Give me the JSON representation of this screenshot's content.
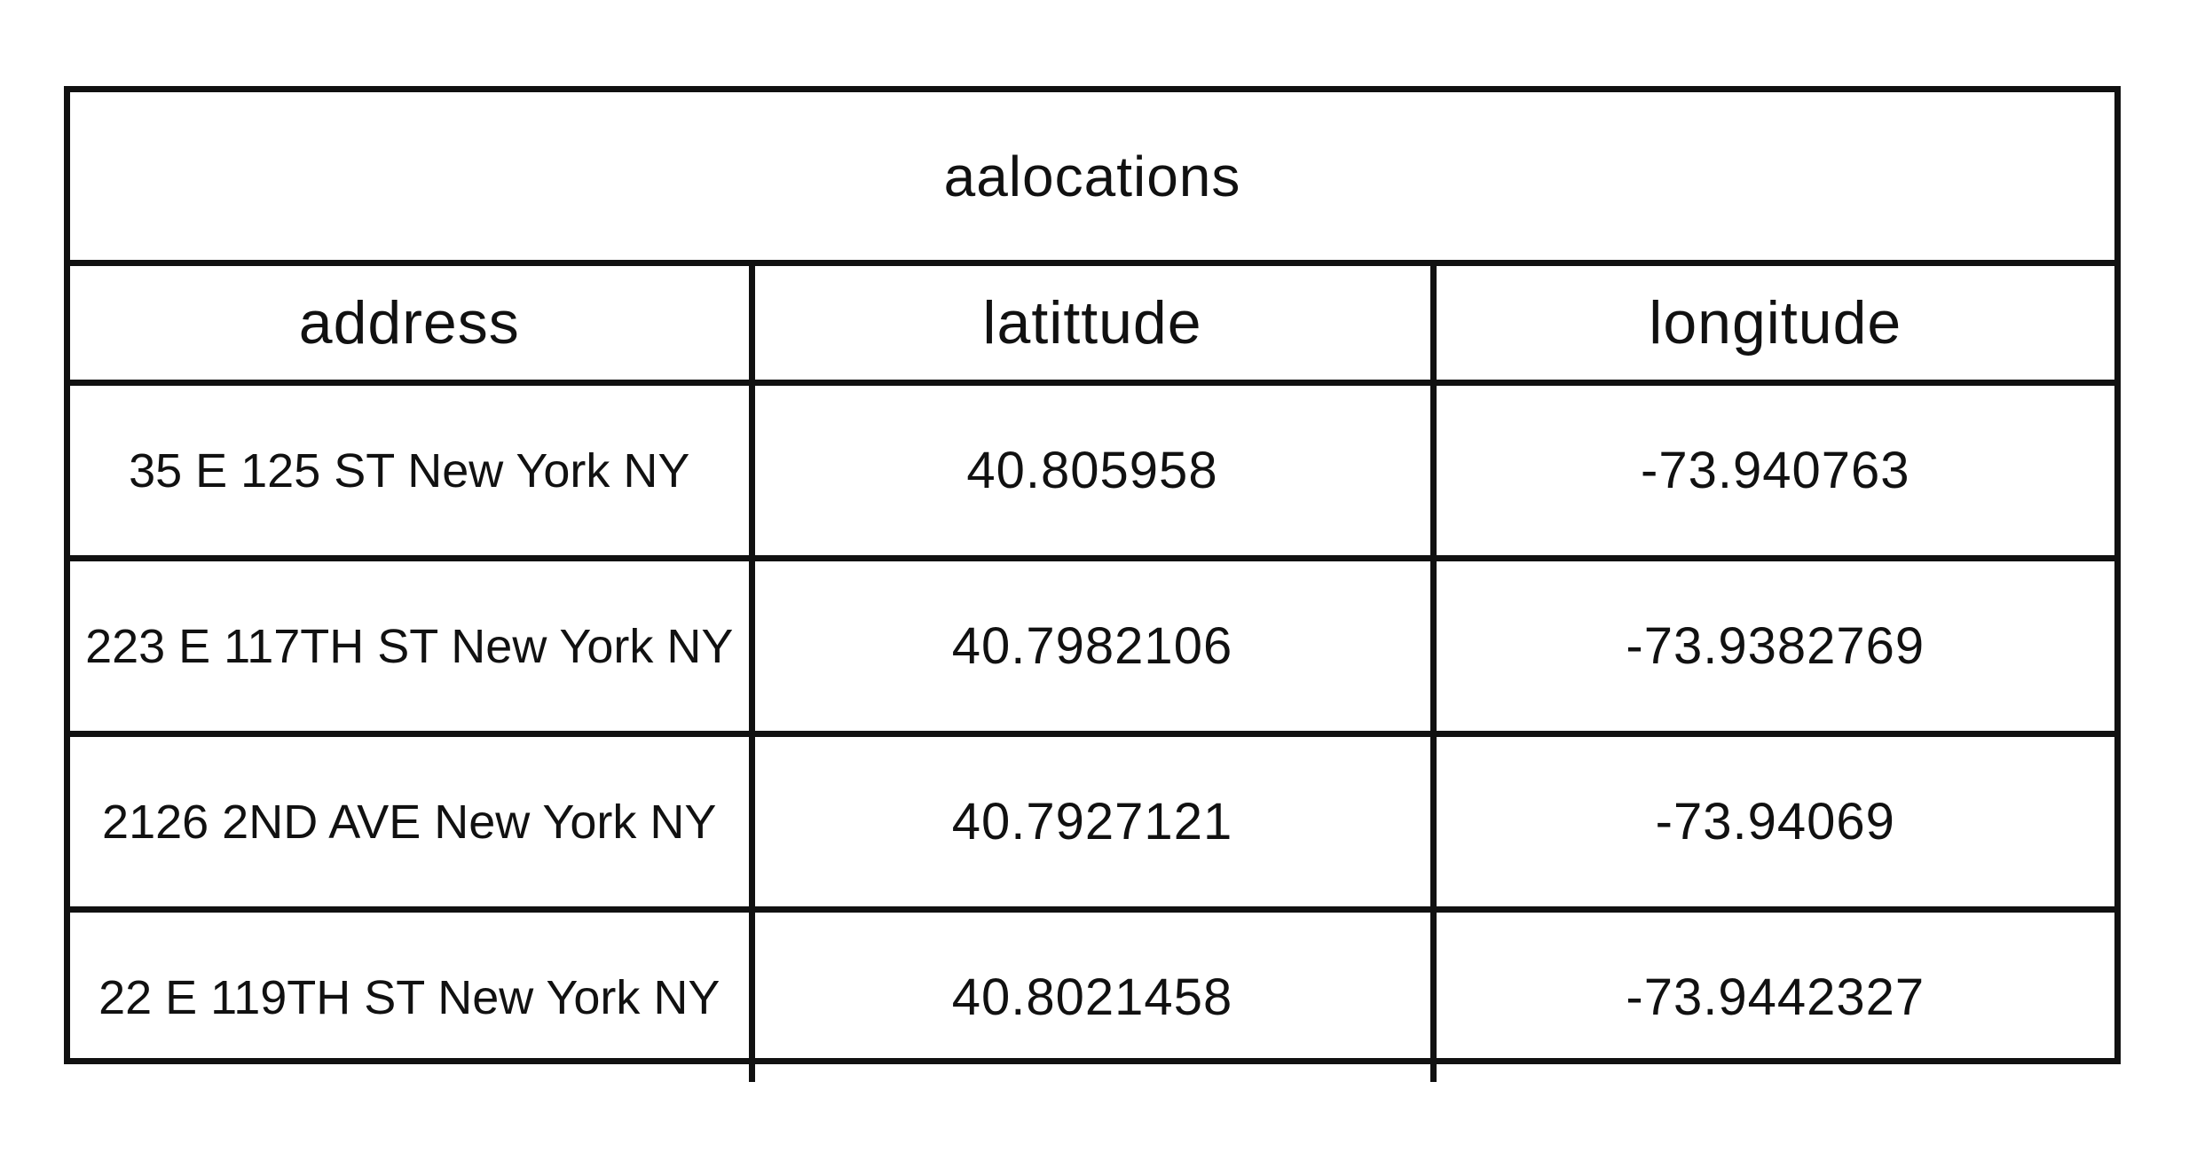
{
  "table": {
    "title": "aalocations",
    "columns": [
      "address",
      "latittude",
      "longitude"
    ],
    "rows": [
      {
        "address": "35 E 125 ST New York NY",
        "latitude": "40.805958",
        "longitude": "-73.940763"
      },
      {
        "address": "223 E 117TH ST New York NY",
        "latitude": "40.7982106",
        "longitude": "-73.9382769"
      },
      {
        "address": "2126 2ND AVE New York NY",
        "latitude": "40.7927121",
        "longitude": "-73.94069"
      },
      {
        "address": "22 E 119TH ST New York NY",
        "latitude": "40.8021458",
        "longitude": "-73.9442327"
      }
    ]
  }
}
